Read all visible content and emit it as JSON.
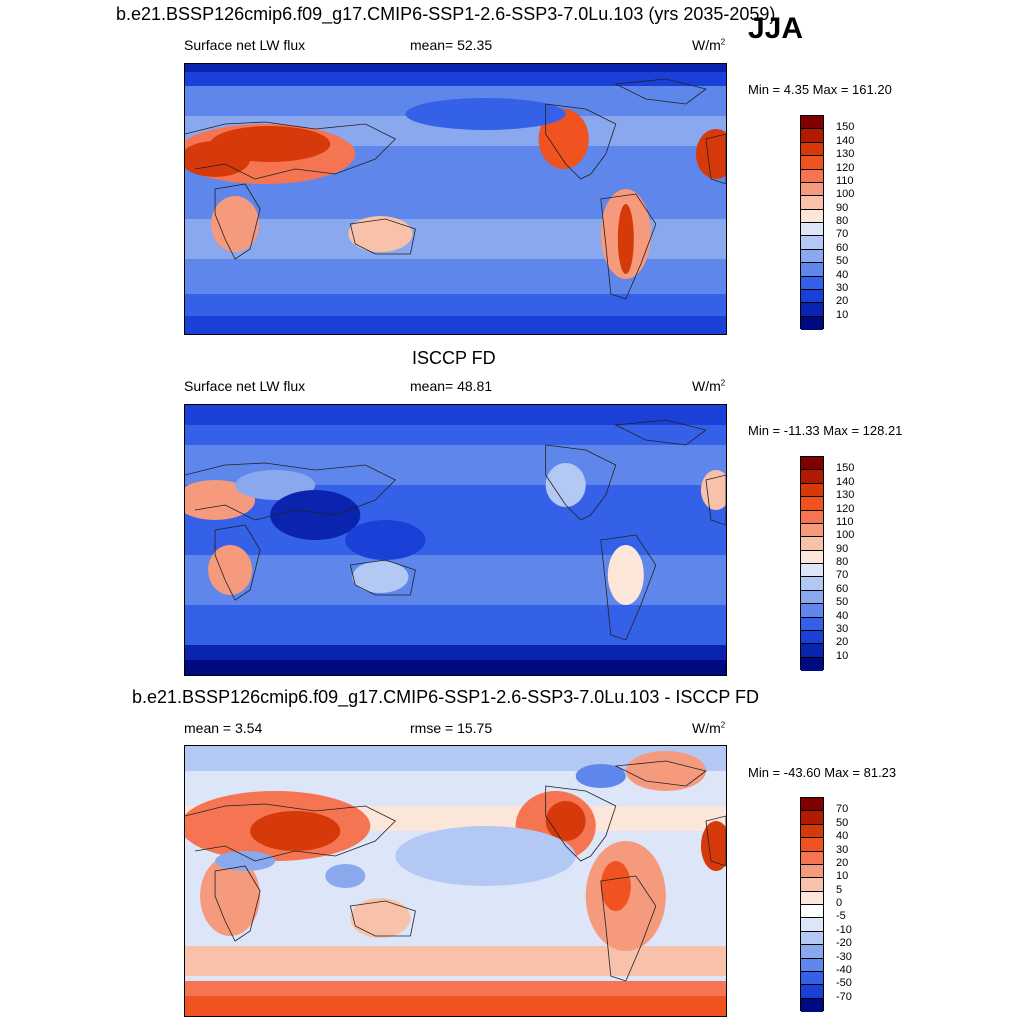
{
  "season": "JJA",
  "panels": [
    {
      "title": "b.e21.BSSP126cmip6.f09_g17.CMIP6-SSP1-2.6-SSP3-7.0Lu.103 (yrs 2035-2059)",
      "left_label": "Surface net LW flux",
      "center_label": "mean=  52.35",
      "units": "W/m",
      "units_sup": "2",
      "minmax": "Min =   4.35 Max = 161.20",
      "scale": "abs",
      "colorbar_labels": [
        "150",
        "140",
        "130",
        "120",
        "110",
        "100",
        "90",
        "80",
        "70",
        "60",
        "50",
        "40",
        "30",
        "20",
        "10"
      ]
    },
    {
      "title": "ISCCP FD",
      "left_label": "Surface net LW flux",
      "center_label": "mean=  48.81",
      "units": "W/m",
      "units_sup": "2",
      "minmax": "Min = -11.33 Max = 128.21",
      "scale": "abs",
      "colorbar_labels": [
        "150",
        "140",
        "130",
        "120",
        "110",
        "100",
        "90",
        "80",
        "70",
        "60",
        "50",
        "40",
        "30",
        "20",
        "10"
      ]
    },
    {
      "title": "b.e21.BSSP126cmip6.f09_g17.CMIP6-SSP1-2.6-SSP3-7.0Lu.103 - ISCCP FD",
      "left_label": "mean =   3.54",
      "center_label": "rmse =  15.75",
      "units": "W/m",
      "units_sup": "2",
      "minmax": "Min = -43.60 Max =  81.23",
      "scale": "diff",
      "colorbar_labels": [
        "70",
        "50",
        "40",
        "30",
        "20",
        "10",
        "5",
        "0",
        "-5",
        "-10",
        "-20",
        "-30",
        "-40",
        "-50",
        "-70"
      ]
    }
  ],
  "colors": {
    "abs": [
      "#7f0000",
      "#b01a00",
      "#d63a0a",
      "#f0531f",
      "#f57552",
      "#f59a7c",
      "#f8c2aa",
      "#fbe6d9",
      "#dce6f8",
      "#b3c8f2",
      "#8aa8ee",
      "#5f86ea",
      "#3561e8",
      "#1a40d8",
      "#0a24b0",
      "#000a80"
    ],
    "diff": [
      "#7f0000",
      "#b01a00",
      "#d63a0a",
      "#f0531f",
      "#f57552",
      "#f59a7c",
      "#f8c2aa",
      "#fbe6d9",
      "#ffffff",
      "#dce6f8",
      "#b3c8f2",
      "#8aa8ee",
      "#5f86ea",
      "#3561e8",
      "#1a40d8",
      "#000a80"
    ]
  }
}
